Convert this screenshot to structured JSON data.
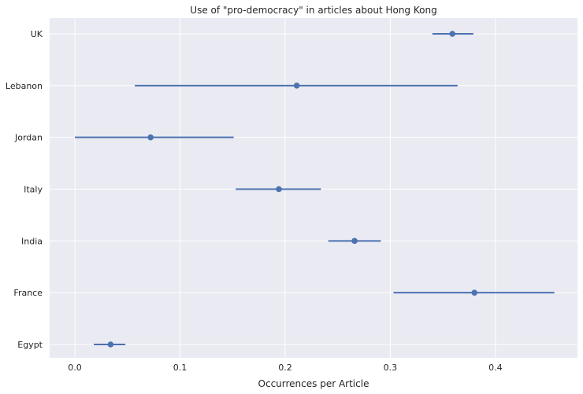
{
  "chart_data": {
    "type": "scatter",
    "title": "Use of \"pro-democracy\" in articles about Hong Kong",
    "xlabel": "Occurrences per Article",
    "ylabel": "",
    "xlim": [
      -0.024,
      0.478
    ],
    "xticks": [
      0.0,
      0.1,
      0.2,
      0.3,
      0.4
    ],
    "xtick_labels": [
      "0.0",
      "0.1",
      "0.2",
      "0.3",
      "0.4"
    ],
    "categories": [
      "UK",
      "Lebanon",
      "Jordan",
      "Italy",
      "India",
      "France",
      "Egypt"
    ],
    "points": [
      {
        "category": "UK",
        "value": 0.359,
        "low": 0.34,
        "high": 0.379
      },
      {
        "category": "Lebanon",
        "value": 0.211,
        "low": 0.057,
        "high": 0.364
      },
      {
        "category": "Jordan",
        "value": 0.072,
        "low": 0.0,
        "high": 0.151
      },
      {
        "category": "Italy",
        "value": 0.194,
        "low": 0.153,
        "high": 0.234
      },
      {
        "category": "India",
        "value": 0.266,
        "low": 0.241,
        "high": 0.291
      },
      {
        "category": "France",
        "value": 0.38,
        "low": 0.303,
        "high": 0.456
      },
      {
        "category": "Egypt",
        "value": 0.034,
        "low": 0.018,
        "high": 0.048
      }
    ],
    "grid": true,
    "background": "#eaeaf2",
    "gridline_color": "#ffffff",
    "series_color": "#4c72b0"
  }
}
